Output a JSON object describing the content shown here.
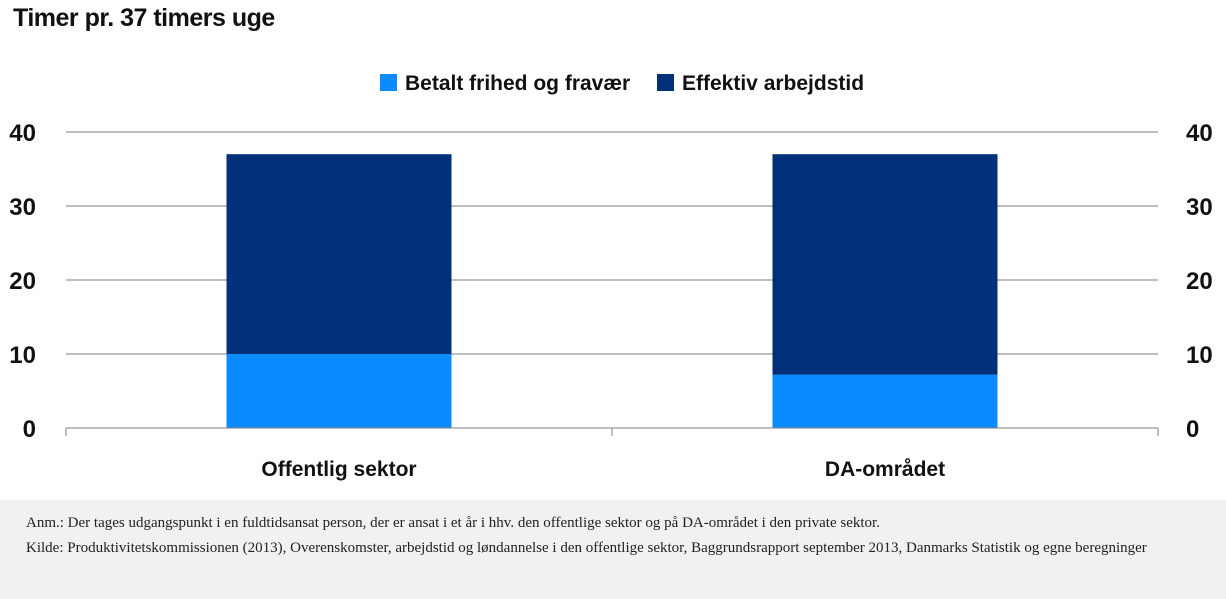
{
  "title": "Timer pr. 37 timers uge",
  "colors": {
    "background": "#ffffff",
    "light_blue": "#0a8bff",
    "dark_blue": "#00307a",
    "grid": "#7f7f7f",
    "notes_background": "#f1f1f1"
  },
  "chart_data": {
    "type": "bar",
    "stacked": true,
    "categories": [
      "Offentlig sektor",
      "DA-området"
    ],
    "series": [
      {
        "name": "Betalt frihed og fravær",
        "values": [
          10,
          7.2
        ],
        "color": "#0a8bff"
      },
      {
        "name": "Effektiv arbejdstid",
        "values": [
          27,
          29.8
        ],
        "color": "#00307a"
      }
    ],
    "ylim": [
      0,
      40
    ],
    "y_ticks": [
      "0",
      "10",
      "20",
      "30",
      "40"
    ],
    "y_axis_right": true,
    "grid": true,
    "legend_position": "top-center"
  },
  "notes": {
    "anm": "Anm.: Der tages udgangspunkt i en fuldtidsansat person, der er ansat i et år i hhv. den offentlige sektor og på DA-området i den private sektor.",
    "kilde": "Kilde: Produktivitetskommissionen (2013), Overenskomster, arbejdstid og løndannelse i den offentlige sektor, Baggrundsrapport september 2013, Danmarks Statistik og egne beregninger"
  }
}
